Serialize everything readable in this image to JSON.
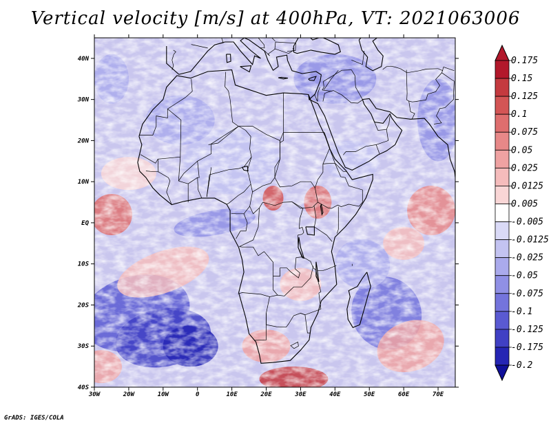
{
  "title": "Vertical velocity [m/s] at 400hPa, VT: 2021063006",
  "credit": "GrADS: IGES/COLA",
  "map": {
    "lon_range": [
      -30,
      75
    ],
    "lat_range": [
      -40,
      45
    ],
    "lon_ticks": [
      "30W",
      "20W",
      "10W",
      "0",
      "10E",
      "20E",
      "30E",
      "40E",
      "50E",
      "60E",
      "70E"
    ],
    "lat_ticks": [
      "40N",
      "30N",
      "20N",
      "10N",
      "EQ",
      "10S",
      "20S",
      "30S",
      "40S"
    ],
    "field": "vertical velocity at 400hPa",
    "ocean_pattern_note": ""
  },
  "colorbar": {
    "labels": [
      "0.175",
      "0.15",
      "0.125",
      "0.1",
      "0.075",
      "0.05",
      "0.025",
      "0.0125",
      "0.005",
      "-0.005",
      "-0.0125",
      "-0.025",
      "-0.05",
      "-0.075",
      "-0.1",
      "-0.125",
      "-0.175",
      "-0.2"
    ],
    "colors": [
      "#b2182b",
      "#c43a3f",
      "#d35555",
      "#de6e6e",
      "#e78888",
      "#efa2a2",
      "#f5bcbc",
      "#f9d6d6",
      "#ffffff",
      "#dadaf7",
      "#c3c3f1",
      "#aaaaec",
      "#9090e5",
      "#7474dc",
      "#5a5ad2",
      "#4040c4",
      "#2525b4",
      "#10109a"
    ]
  }
}
